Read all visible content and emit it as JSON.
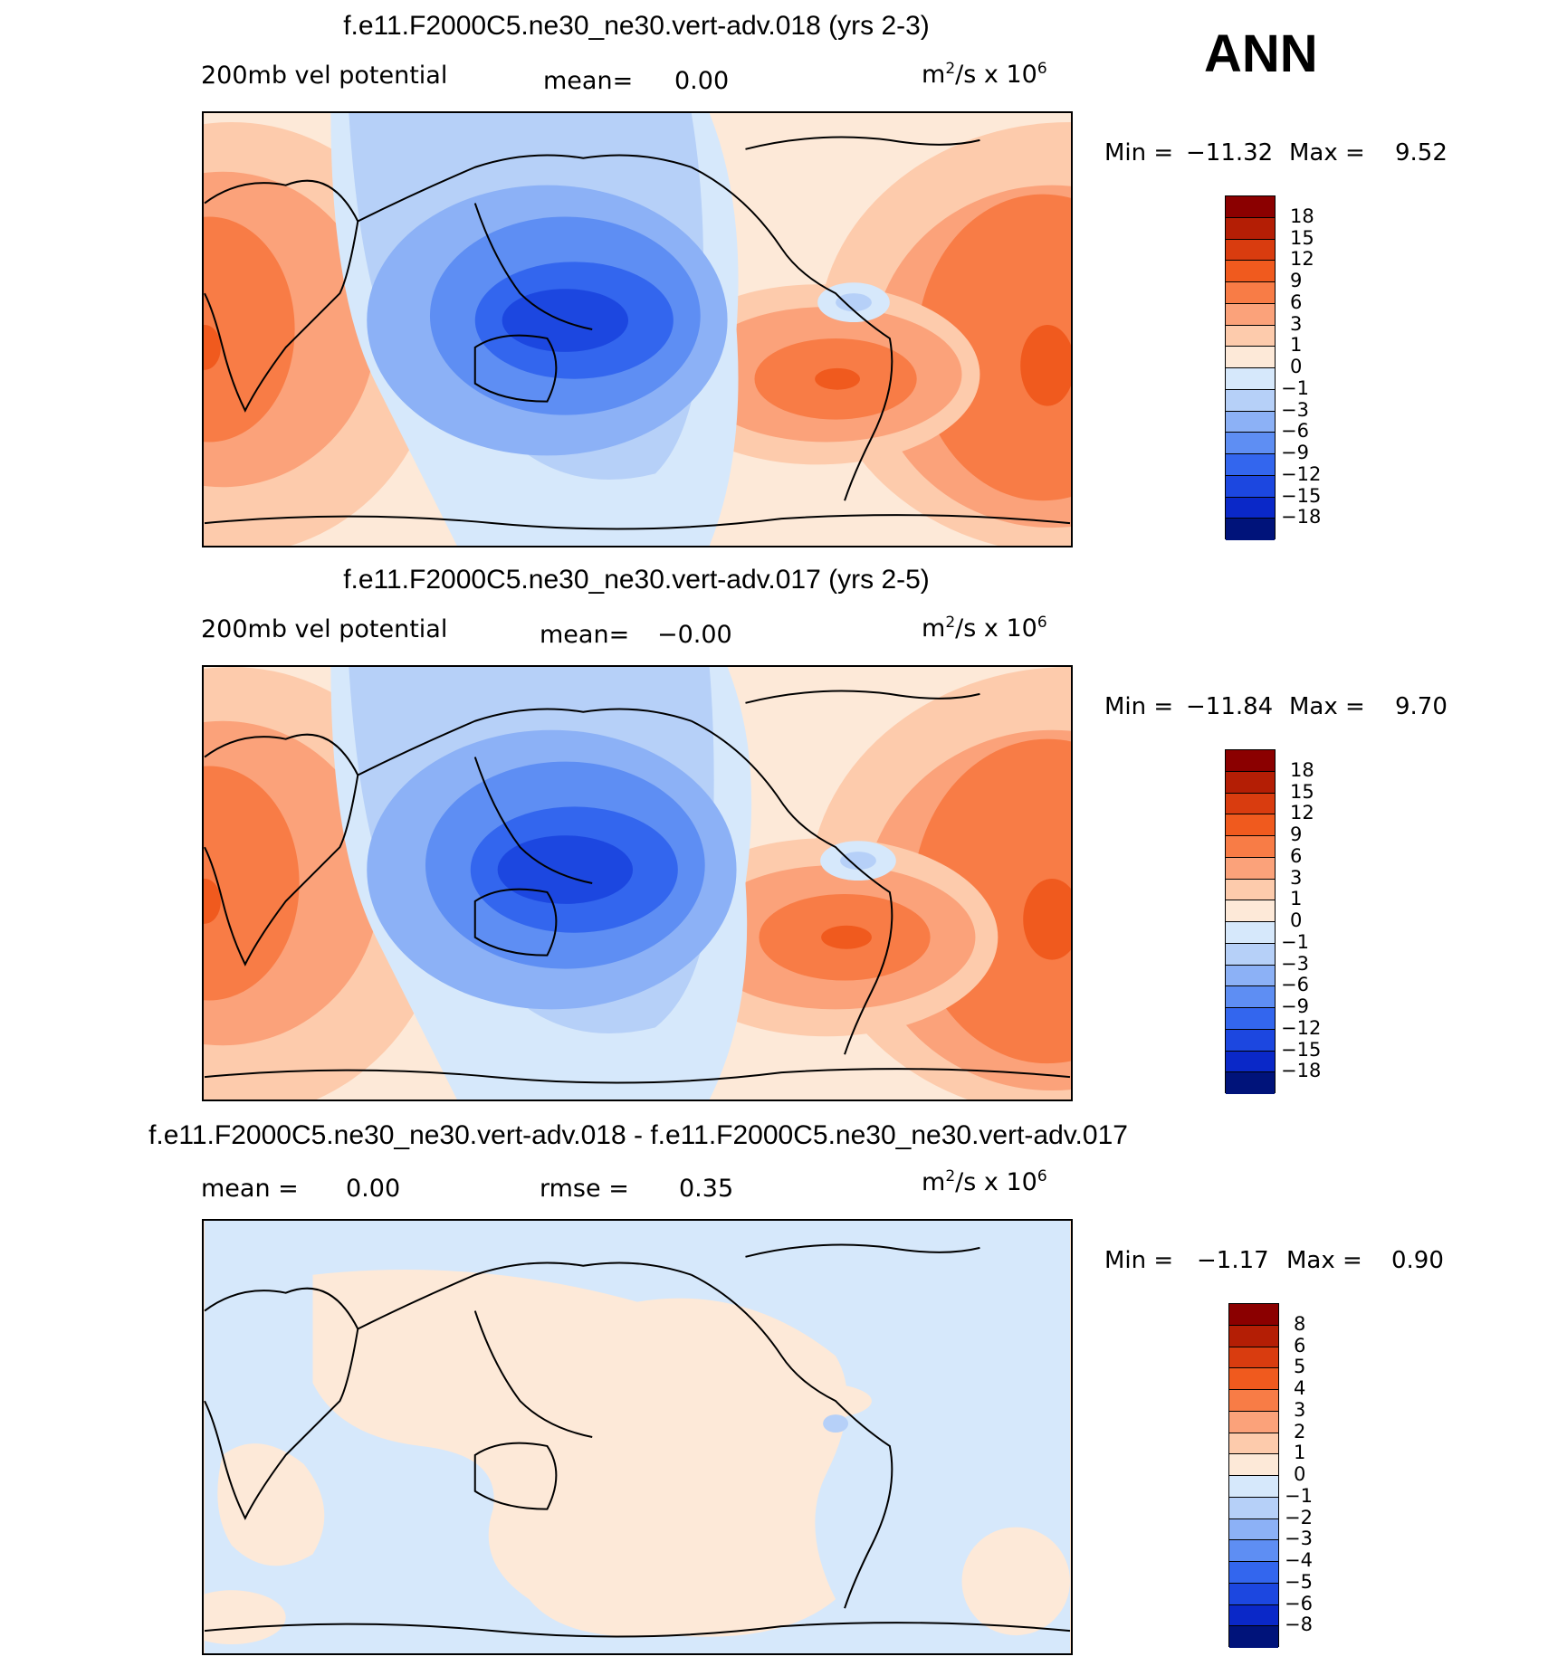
{
  "season": "ANN",
  "panels": [
    {
      "title": "f.e11.F2000C5.ne30_ne30.vert-adv.018 (yrs 2-3)",
      "left_label": "200mb vel potential",
      "mid_label": "mean=",
      "mid_value": "0.00",
      "units_base": "m",
      "units_sup1": "2",
      "units_mid": "/s x 10",
      "units_sup2": "6",
      "minmax": {
        "min_label": "Min =",
        "min_value": "−11.32",
        "max_label": "Max =",
        "max_value": "9.52"
      },
      "colorbar": {
        "labels": [
          "18",
          "15",
          "12",
          "9",
          "6",
          "3",
          "1",
          "0",
          "−1",
          "−3",
          "−6",
          "−9",
          "−12",
          "−15",
          "−18"
        ],
        "colors": [
          "#8b0000",
          "#b41e05",
          "#d93c0f",
          "#f05a1e",
          "#f87c46",
          "#fba27a",
          "#fdcbac",
          "#fde9d8",
          "#d6e8fb",
          "#b6d0f8",
          "#8cb1f6",
          "#5e8ef3",
          "#3366ee",
          "#1c47e0",
          "#0a28c8",
          "#00137a"
        ]
      }
    },
    {
      "title": "f.e11.F2000C5.ne30_ne30.vert-adv.017 (yrs 2-5)",
      "left_label": "200mb vel potential",
      "mid_label": "mean=",
      "mid_value": "−0.00",
      "units_base": "m",
      "units_sup1": "2",
      "units_mid": "/s x 10",
      "units_sup2": "6",
      "minmax": {
        "min_label": "Min =",
        "min_value": "−11.84",
        "max_label": "Max =",
        "max_value": "9.70"
      },
      "colorbar": {
        "labels": [
          "18",
          "15",
          "12",
          "9",
          "6",
          "3",
          "1",
          "0",
          "−1",
          "−3",
          "−6",
          "−9",
          "−12",
          "−15",
          "−18"
        ],
        "colors": [
          "#8b0000",
          "#b41e05",
          "#d93c0f",
          "#f05a1e",
          "#f87c46",
          "#fba27a",
          "#fdcbac",
          "#fde9d8",
          "#d6e8fb",
          "#b6d0f8",
          "#8cb1f6",
          "#5e8ef3",
          "#3366ee",
          "#1c47e0",
          "#0a28c8",
          "#00137a"
        ]
      }
    },
    {
      "title": "f.e11.F2000C5.ne30_ne30.vert-adv.018 - f.e11.F2000C5.ne30_ne30.vert-adv.017",
      "left_label": "mean =",
      "left_value": "0.00",
      "mid_label": "rmse =",
      "mid_value": "0.35",
      "units_base": "m",
      "units_sup1": "2",
      "units_mid": "/s x 10",
      "units_sup2": "6",
      "minmax": {
        "min_label": "Min =",
        "min_value": "−1.17",
        "max_label": "Max =",
        "max_value": "0.90"
      },
      "colorbar": {
        "labels": [
          "8",
          "6",
          "5",
          "4",
          "3",
          "2",
          "1",
          "0",
          "−1",
          "−2",
          "−3",
          "−4",
          "−5",
          "−6",
          "−8"
        ],
        "colors": [
          "#8b0000",
          "#b41e05",
          "#d93c0f",
          "#f05a1e",
          "#f87c46",
          "#fba27a",
          "#fdcbac",
          "#fde9d8",
          "#d6e8fb",
          "#b6d0f8",
          "#8cb1f6",
          "#5e8ef3",
          "#3366ee",
          "#1c47e0",
          "#0a28c8",
          "#00137a"
        ]
      }
    }
  ]
}
